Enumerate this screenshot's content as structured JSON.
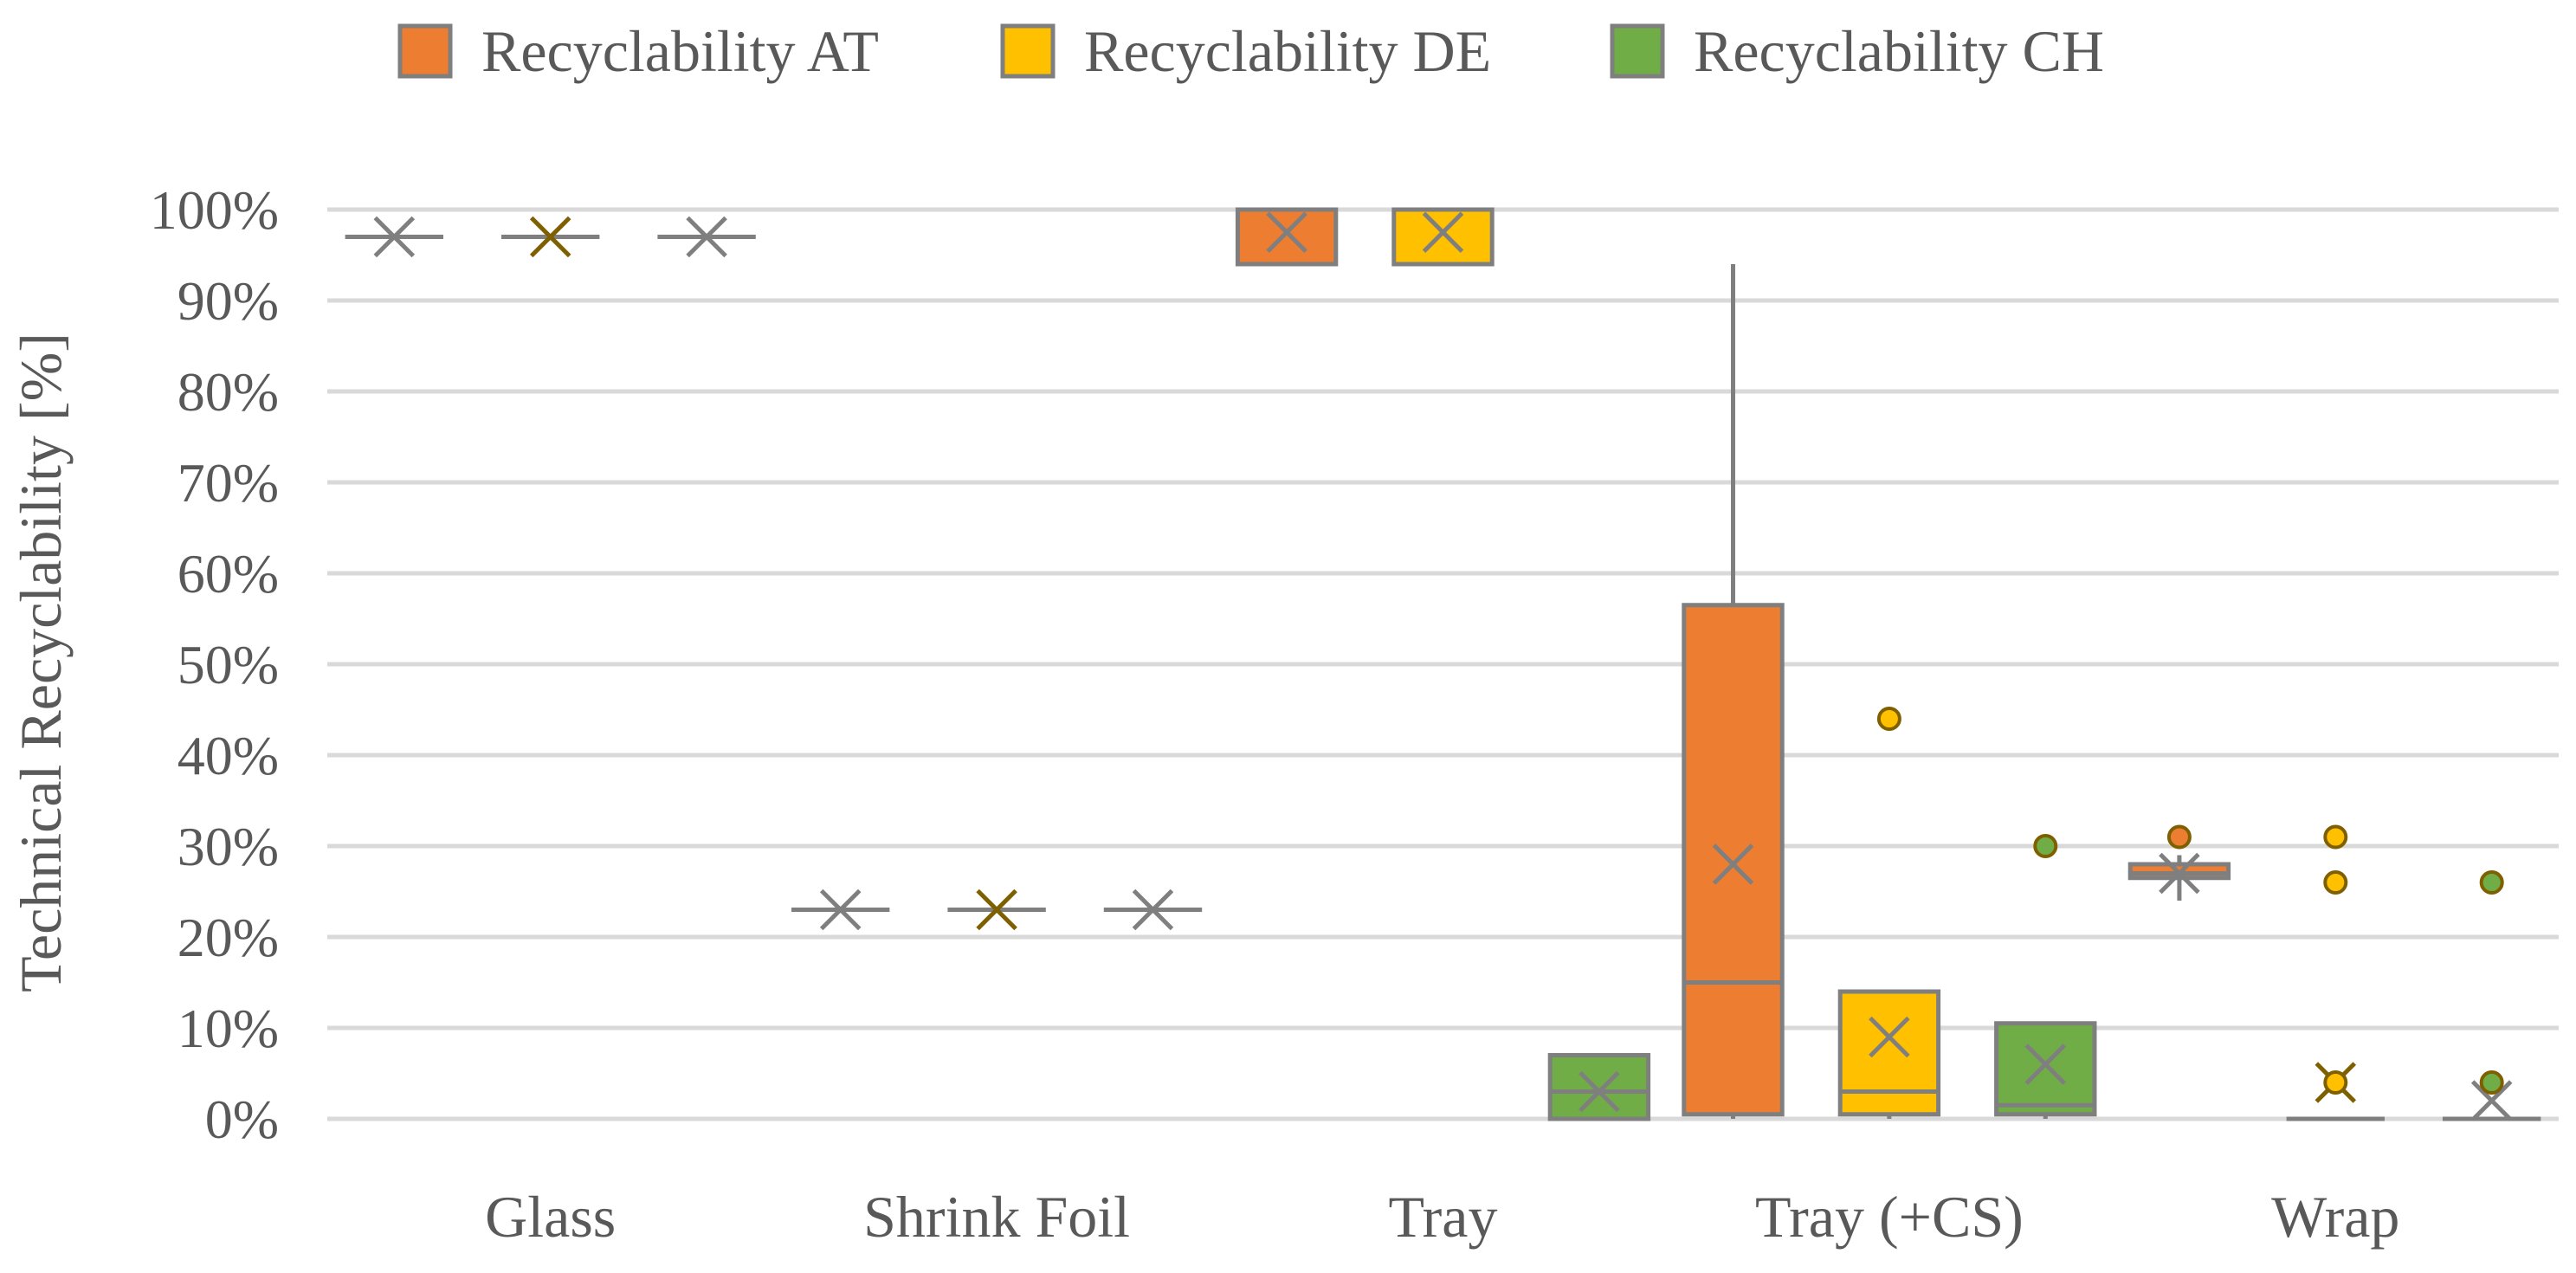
{
  "chart_data": {
    "type": "boxplot",
    "title": "",
    "xlabel": "",
    "ylabel": "Technical Recyclability [%]",
    "ylim": [
      0,
      100
    ],
    "yticks": [
      0,
      10,
      20,
      30,
      40,
      50,
      60,
      70,
      80,
      90,
      100
    ],
    "ytick_labels": [
      "0%",
      "10%",
      "20%",
      "30%",
      "40%",
      "50%",
      "60%",
      "70%",
      "80%",
      "90%",
      "100%"
    ],
    "grid": true,
    "legend_position": "top",
    "categories": [
      "Glass",
      "Shrink Foil",
      "Tray",
      "Tray (+CS)",
      "Wrap"
    ],
    "series": [
      {
        "name": "Recyclability AT",
        "color": "#ED7D31",
        "boxes": [
          {
            "category": "Glass",
            "min": 97,
            "q1": 97,
            "median": 97,
            "q3": 97,
            "max": 97,
            "mean": 97,
            "outliers": []
          },
          {
            "category": "Shrink Foil",
            "min": 23,
            "q1": 23,
            "median": 23,
            "q3": 23,
            "max": 23,
            "mean": 23,
            "outliers": []
          },
          {
            "category": "Tray",
            "min": 94,
            "q1": 94,
            "median": 100,
            "q3": 100,
            "max": 100,
            "mean": 97.5,
            "outliers": []
          },
          {
            "category": "Tray (+CS)",
            "min": 0,
            "q1": 0.5,
            "median": 15,
            "q3": 56.5,
            "max": 94,
            "mean": 28,
            "outliers": []
          },
          {
            "category": "Wrap",
            "min": 24,
            "q1": 26.5,
            "median": 27,
            "q3": 28,
            "max": 29,
            "mean": 27,
            "outliers": [
              31
            ]
          }
        ]
      },
      {
        "name": "Recyclability DE",
        "color": "#FFC000",
        "boxes": [
          {
            "category": "Glass",
            "min": 97,
            "q1": 97,
            "median": 97,
            "q3": 97,
            "max": 97,
            "mean": 97,
            "outliers": []
          },
          {
            "category": "Shrink Foil",
            "min": 23,
            "q1": 23,
            "median": 23,
            "q3": 23,
            "max": 23,
            "mean": 23,
            "outliers": []
          },
          {
            "category": "Tray",
            "min": 94,
            "q1": 94,
            "median": 100,
            "q3": 100,
            "max": 100,
            "mean": 97.5,
            "outliers": []
          },
          {
            "category": "Tray (+CS)",
            "min": 0,
            "q1": 0.5,
            "median": 3,
            "q3": 14,
            "max": 14,
            "mean": 9,
            "outliers": [
              44
            ]
          },
          {
            "category": "Wrap",
            "min": 0,
            "q1": 0,
            "median": 0,
            "q3": 0,
            "max": 0,
            "mean": 4,
            "outliers": [
              4,
              26,
              31
            ]
          }
        ]
      },
      {
        "name": "Recyclability CH",
        "color": "#70AD47",
        "boxes": [
          {
            "category": "Glass",
            "min": 97,
            "q1": 97,
            "median": 97,
            "q3": 97,
            "max": 97,
            "mean": 97,
            "outliers": []
          },
          {
            "category": "Shrink Foil",
            "min": 23,
            "q1": 23,
            "median": 23,
            "q3": 23,
            "max": 23,
            "mean": 23,
            "outliers": []
          },
          {
            "category": "Tray",
            "min": 0,
            "q1": 0,
            "median": 3,
            "q3": 7,
            "max": 7,
            "mean": 3,
            "outliers": []
          },
          {
            "category": "Tray (+CS)",
            "min": 0,
            "q1": 0.5,
            "median": 1.5,
            "q3": 10.5,
            "max": 10.5,
            "mean": 6,
            "outliers": [
              30
            ]
          },
          {
            "category": "Wrap",
            "min": 0,
            "q1": 0,
            "median": 0,
            "q3": 0,
            "max": 0,
            "mean": 2,
            "outliers": [
              4,
              26
            ]
          }
        ]
      }
    ]
  }
}
